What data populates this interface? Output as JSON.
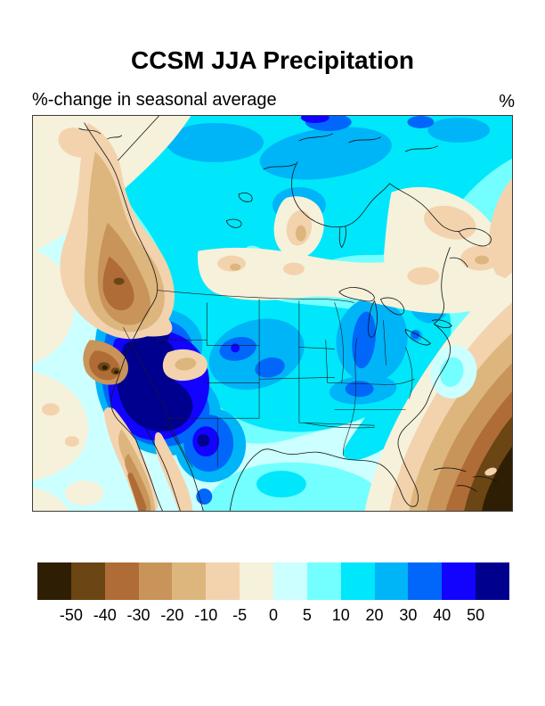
{
  "figure": {
    "title": "CCSM JJA Precipitation",
    "subtitle": "%-change in seasonal average",
    "units_label": "%"
  },
  "colorbar": {
    "tick_labels": [
      "-50",
      "-40",
      "-30",
      "-20",
      "-10",
      "-5",
      "0",
      "5",
      "10",
      "20",
      "30",
      "40",
      "50"
    ],
    "colors": [
      "#2E1E04",
      "#6B4514",
      "#B06C36",
      "#C8945A",
      "#DDB67D",
      "#F2D3AE",
      "#F6F1DA",
      "#CCFFFF",
      "#73FFFF",
      "#00E6FA",
      "#00B4F8",
      "#0067FA",
      "#1203FF",
      "#00008F"
    ]
  },
  "chart_data": {
    "type": "heatmap",
    "title": "CCSM JJA Precipitation",
    "subtitle": "%-change in seasonal average",
    "units": "%",
    "region": "North America (contour map with coastlines, state and province borders)",
    "levels_percent": [
      -50,
      -40,
      -30,
      -20,
      -10,
      -5,
      0,
      5,
      10,
      20,
      30,
      40,
      50
    ],
    "palette": [
      "#2E1E04",
      "#6B4514",
      "#B06C36",
      "#C8945A",
      "#DDB67D",
      "#F2D3AE",
      "#F6F1DA",
      "#CCFFFF",
      "#73FFFF",
      "#00E6FA",
      "#00B4F8",
      "#0067FA",
      "#1203FF",
      "#00008F"
    ],
    "legend_position": "bottom horizontal labelbar",
    "features": [
      {
        "area": "Great Basin / Nevada-Utah-Arizona",
        "value_percent": "> +50"
      },
      {
        "area": "West Texas - New Mexico - northern Mexico",
        "value_percent": "+40 to +50"
      },
      {
        "area": "Montana and Dakotas (northern plains)",
        "value_percent": "+30 to +40"
      },
      {
        "area": "Midwest (Indiana/Ohio) and Tennessee valley",
        "value_percent": "+20 to +40"
      },
      {
        "area": "Most of Canada, Great Lakes and eastern US",
        "value_percent": "+5 to +20"
      },
      {
        "area": "Arctic coast patches",
        "value_percent": "+20 to +40"
      },
      {
        "area": "British Columbia coast / Pacific Northwest",
        "value_percent": "-10 to -30"
      },
      {
        "area": "Sierra Nevada, northern California",
        "value_percent": "-30 to -50"
      },
      {
        "area": "Baja California peninsula",
        "value_percent": "-10 to -30"
      },
      {
        "area": "Quebec / Labrador and Hudson Bay shores",
        "value_percent": "-5 to -10"
      },
      {
        "area": "Subtropical Atlantic / Caribbean (bottom right)",
        "value_percent": "-40 to < -50"
      },
      {
        "area": "Northeast Pacific offshore",
        "value_percent": "-5 to +5"
      }
    ]
  }
}
